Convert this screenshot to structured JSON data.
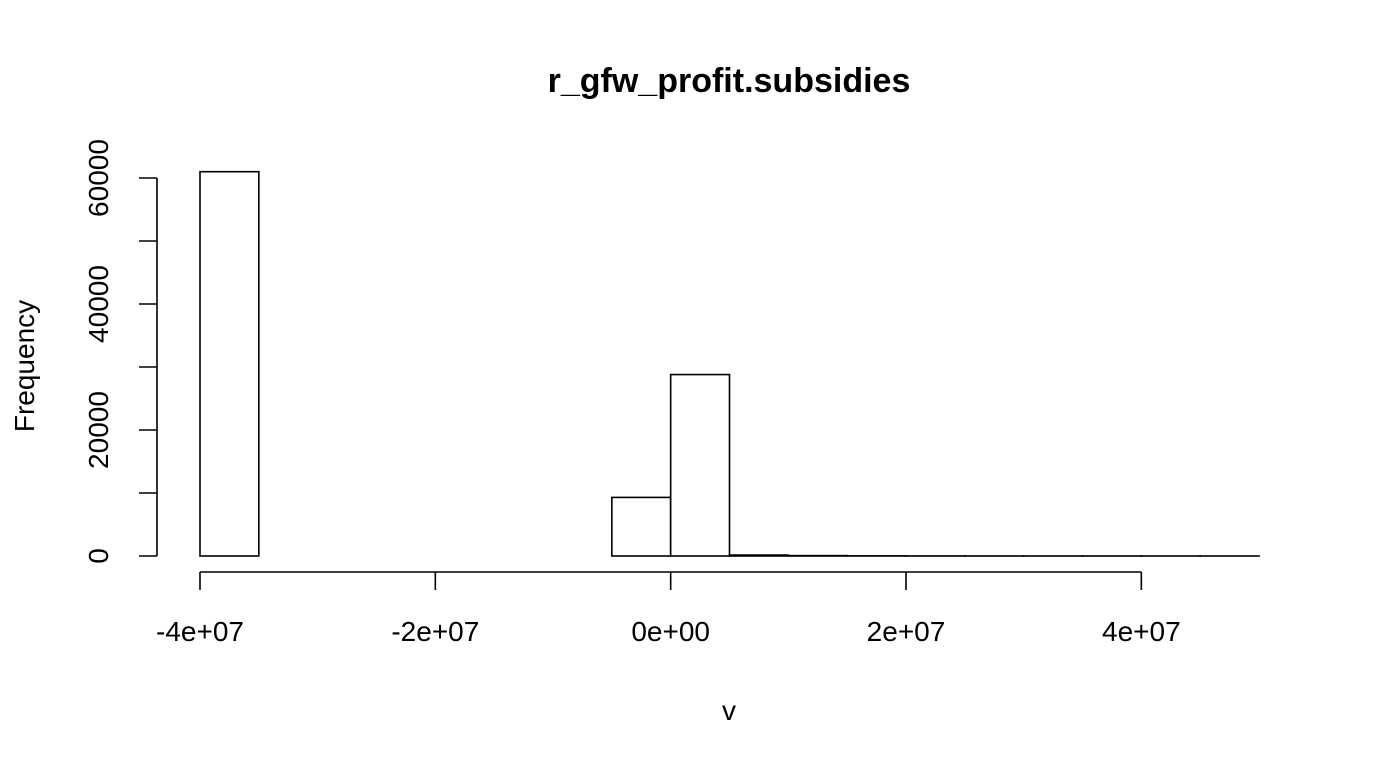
{
  "chart_data": {
    "type": "bar",
    "title": "r_gfw_profit.subsidies",
    "xlabel": "v",
    "ylabel": "Frequency",
    "xlim": [
      -40000000,
      50000000
    ],
    "ylim": [
      0,
      60000
    ],
    "x_ticks": [
      -40000000,
      -20000000,
      0,
      20000000,
      40000000
    ],
    "x_tick_labels": [
      "-4e+07",
      "-2e+07",
      "0e+00",
      "2e+07",
      "4e+07"
    ],
    "y_ticks": [
      0,
      10000,
      20000,
      30000,
      40000,
      50000,
      60000
    ],
    "y_tick_labels": [
      "0",
      "20000",
      "40000",
      "60000"
    ],
    "bins": [
      {
        "x0": -40000000,
        "x1": -35000000,
        "count": 61000
      },
      {
        "x0": -35000000,
        "x1": -30000000,
        "count": 0
      },
      {
        "x0": -30000000,
        "x1": -25000000,
        "count": 0
      },
      {
        "x0": -25000000,
        "x1": -20000000,
        "count": 0
      },
      {
        "x0": -20000000,
        "x1": -15000000,
        "count": 0
      },
      {
        "x0": -15000000,
        "x1": -10000000,
        "count": 0
      },
      {
        "x0": -10000000,
        "x1": -5000000,
        "count": 0
      },
      {
        "x0": -5000000,
        "x1": 0,
        "count": 9300
      },
      {
        "x0": 0,
        "x1": 5000000,
        "count": 28800
      },
      {
        "x0": 5000000,
        "x1": 10000000,
        "count": 150
      },
      {
        "x0": 10000000,
        "x1": 15000000,
        "count": 60
      },
      {
        "x0": 15000000,
        "x1": 20000000,
        "count": 20
      },
      {
        "x0": 20000000,
        "x1": 25000000,
        "count": 10
      },
      {
        "x0": 25000000,
        "x1": 30000000,
        "count": 5
      },
      {
        "x0": 30000000,
        "x1": 35000000,
        "count": 3
      },
      {
        "x0": 35000000,
        "x1": 40000000,
        "count": 2
      },
      {
        "x0": 40000000,
        "x1": 45000000,
        "count": 1
      },
      {
        "x0": 45000000,
        "x1": 50000000,
        "count": 1
      }
    ],
    "grid": false,
    "legend": "none"
  }
}
